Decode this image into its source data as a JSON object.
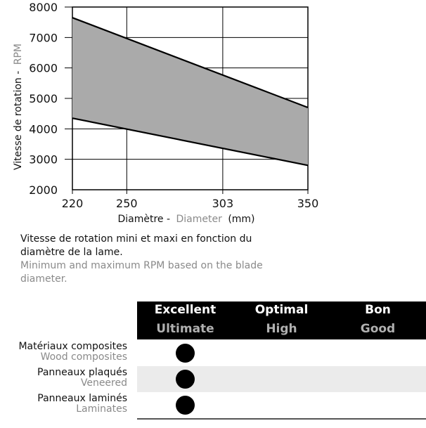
{
  "chart_data": {
    "type": "area",
    "ylabel_fr": "Vitesse de rotation -",
    "ylabel_en": "RPM",
    "xlabel_fr": "Diamètre -",
    "xlabel_en": "Diameter",
    "xlabel_unit": "(mm)",
    "x_ticks": [
      220,
      250,
      303,
      350
    ],
    "y_ticks": [
      2000,
      3000,
      4000,
      5000,
      6000,
      7000,
      8000
    ],
    "xlim": [
      220,
      350
    ],
    "ylim": [
      2000,
      8000
    ],
    "grid": true,
    "series": [
      {
        "name": "",
        "x": [
          220,
          350
        ],
        "values": [
          7650,
          4700
        ]
      },
      {
        "name": "",
        "x": [
          220,
          350
        ],
        "values": [
          4350,
          2800
        ]
      }
    ],
    "fill_color": "#aaaaaa",
    "line_color": "#000000"
  },
  "caption": {
    "fr_line1": "Vitesse de rotation mini et maxi en fonction du",
    "fr_line2": "diamètre de la lame.",
    "en_line1": "Minimum and maximum RPM based on the blade",
    "en_line2": "diameter."
  },
  "table": {
    "columns": [
      {
        "fr": "Excellent",
        "en": "Ultimate"
      },
      {
        "fr": "Optimal",
        "en": "High"
      },
      {
        "fr": "Bon",
        "en": "Good"
      }
    ],
    "rows": [
      {
        "fr": "Matériaux composites",
        "en": "Wood composites",
        "rating": 0
      },
      {
        "fr": "Panneaux plaqués",
        "en": "Veneered",
        "rating": 0
      },
      {
        "fr": "Panneaux laminés",
        "en": "Laminates",
        "rating": 0
      }
    ]
  }
}
